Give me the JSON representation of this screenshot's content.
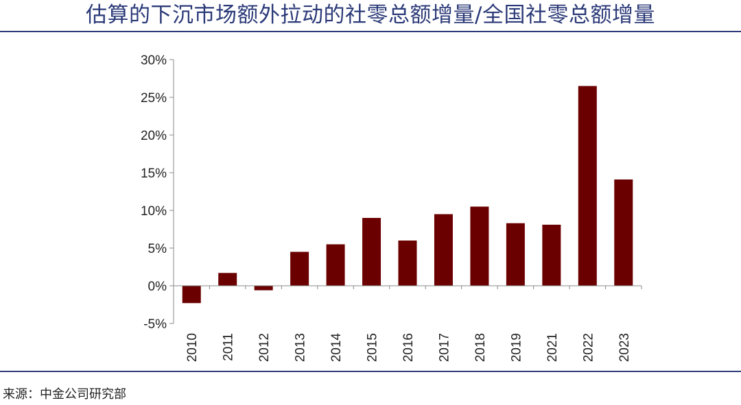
{
  "header": {
    "title": "估算的下沉市场额外拉动的社零总额增量/全国社零总额增量"
  },
  "footer": {
    "source": "来源：中金公司研究部"
  },
  "colors": {
    "bar": "#6b0000",
    "rule": "#2b3a78",
    "axis": "#888888"
  },
  "chart_data": {
    "type": "bar",
    "title": "估算的下沉市场额外拉动的社零总额增量/全国社零总额增量",
    "xlabel": "",
    "ylabel": "",
    "categories": [
      "2010",
      "2011",
      "2012",
      "2013",
      "2014",
      "2015",
      "2016",
      "2017",
      "2018",
      "2019",
      "2021",
      "2022",
      "2023"
    ],
    "values": [
      -2.3,
      1.7,
      -0.6,
      4.5,
      5.5,
      9.0,
      6.0,
      9.5,
      10.5,
      8.3,
      8.1,
      26.5,
      14.1
    ],
    "value_unit": "%",
    "ylim": [
      -5,
      30
    ],
    "yticks": [
      -5,
      0,
      5,
      10,
      15,
      20,
      25,
      30
    ],
    "ytick_labels": [
      "-5%",
      "0%",
      "5%",
      "10%",
      "15%",
      "20%",
      "25%",
      "30%"
    ],
    "grid": false,
    "legend": "none"
  }
}
